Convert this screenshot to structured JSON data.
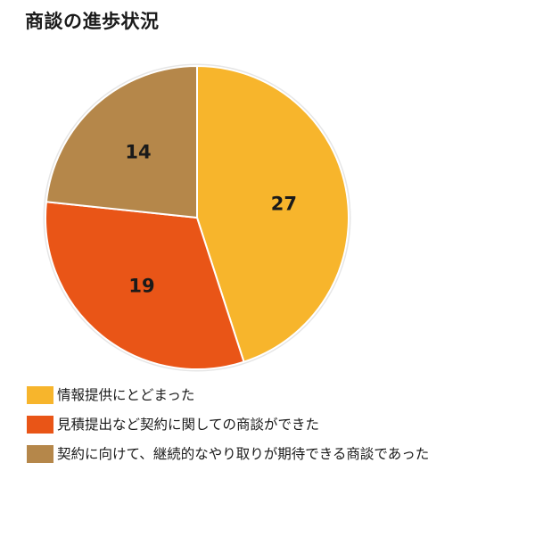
{
  "chart_data": {
    "type": "pie",
    "title": "商談の進歩状況",
    "categories": [
      "情報提供にとどまった",
      "見積提出など契約に関しての商談ができた",
      "契約に向けて、継続的なやり取りが期待できる商談であった"
    ],
    "values": [
      27,
      19,
      14
    ],
    "colors": [
      "#F7B52C",
      "#E95517",
      "#B5874A"
    ],
    "data_labels": [
      "27",
      "19",
      "14"
    ],
    "start_angle_deg": 0,
    "direction": "clockwise",
    "legend_position": "bottom-left"
  }
}
